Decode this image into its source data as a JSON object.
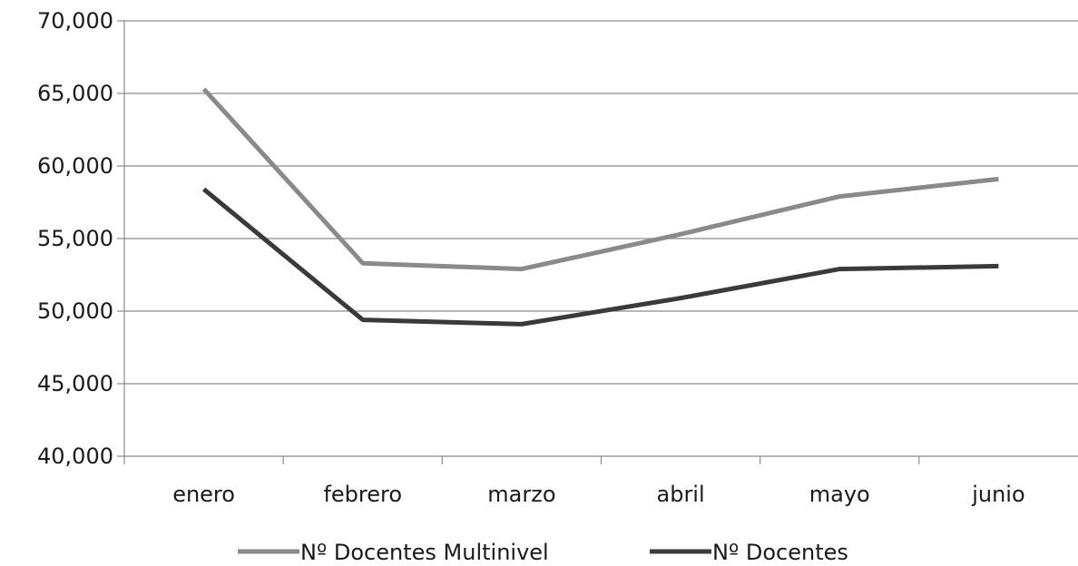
{
  "chart_data": {
    "type": "line",
    "categories": [
      "enero",
      "febrero",
      "marzo",
      "abril",
      "mayo",
      "junio"
    ],
    "ylim": [
      40000,
      70000
    ],
    "yticks": [
      40000,
      45000,
      50000,
      55000,
      60000,
      65000,
      70000
    ],
    "ytick_labels": [
      "40,000",
      "45,000",
      "50,000",
      "55,000",
      "60,000",
      "65,000",
      "70,000"
    ],
    "grid": true,
    "legend_position": "bottom",
    "series": [
      {
        "name": "Nº Docentes Multinivel",
        "color": "#8a8a8a",
        "values": [
          65300,
          53300,
          52900,
          55300,
          57900,
          59100
        ]
      },
      {
        "name": "Nº Docentes",
        "color": "#3a3a3a",
        "values": [
          58400,
          49400,
          49100,
          50900,
          52900,
          53100
        ]
      }
    ]
  }
}
